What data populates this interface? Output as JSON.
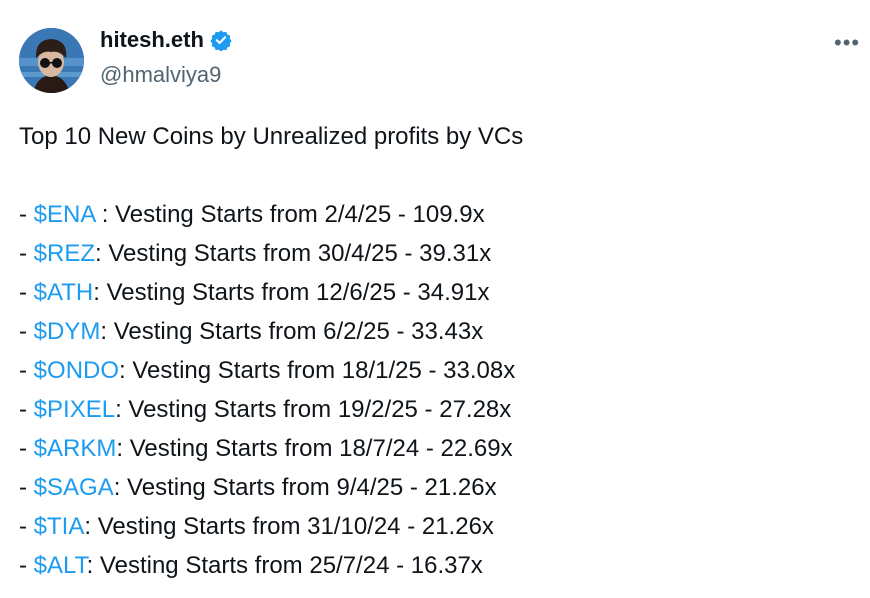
{
  "author": {
    "name": "hitesh.eth",
    "handle": "@hmalviya9",
    "verified": true
  },
  "more_icon": "more-horizontal-icon",
  "tweet": {
    "headline": "Top 10 New Coins by Unrealized profits by VCs",
    "items": [
      {
        "prefix": "- ",
        "ticker": "$ENA",
        "text": " : Vesting Starts from 2/4/25 - 109.9x"
      },
      {
        "prefix": "- ",
        "ticker": "$REZ",
        "text": ": Vesting Starts from 30/4/25 - 39.31x"
      },
      {
        "prefix": "- ",
        "ticker": "$ATH",
        "text": ": Vesting Starts from 12/6/25 - 34.91x"
      },
      {
        "prefix": "- ",
        "ticker": "$DYM",
        "text": ": Vesting Starts from 6/2/25 - 33.43x"
      },
      {
        "prefix": "- ",
        "ticker": "$ONDO",
        "text": ": Vesting Starts from 18/1/25 - 33.08x"
      },
      {
        "prefix": "- ",
        "ticker": "$PIXEL",
        "text": ": Vesting Starts from 19/2/25 - 27.28x"
      },
      {
        "prefix": "- ",
        "ticker": "$ARKM",
        "text": ": Vesting Starts from 18/7/24 - 22.69x"
      },
      {
        "prefix": "- ",
        "ticker": "$SAGA",
        "text": ": Vesting Starts from 9/4/25 - 21.26x"
      },
      {
        "prefix": "- ",
        "ticker": "$TIA",
        "text": ": Vesting Starts from 31/10/24 - 21.26x"
      },
      {
        "prefix": "- ",
        "ticker": "$ALT",
        "text": ": Vesting Starts from 25/7/24 - 16.37x"
      }
    ]
  },
  "colors": {
    "link": "#1d9bf0",
    "text": "#0f1419",
    "secondary": "#536471"
  }
}
